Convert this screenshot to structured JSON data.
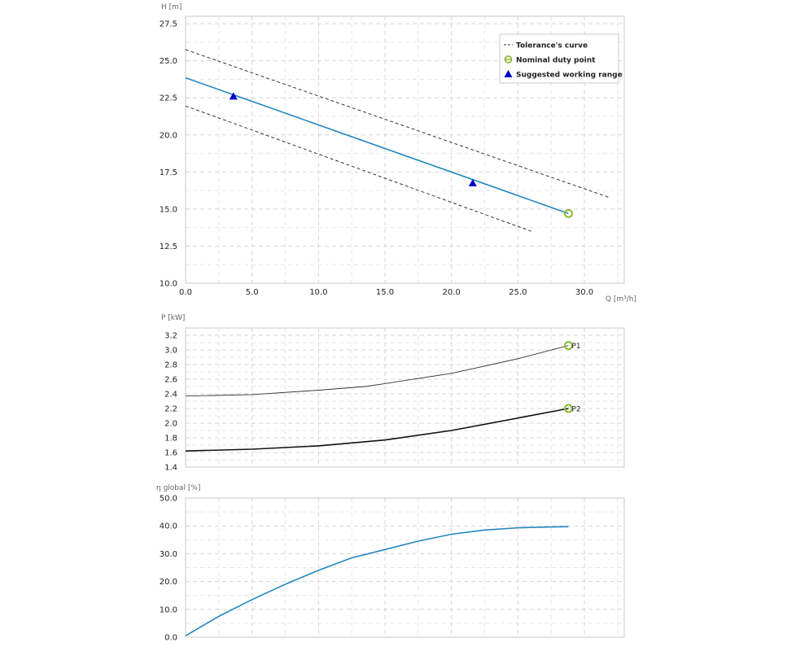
{
  "chart_data": [
    {
      "type": "line",
      "ylabel": "H [m]",
      "xlabel": "Q [m³/h]",
      "xlim": [
        0,
        33
      ],
      "ylim": [
        10,
        28
      ],
      "xticks": [
        "0.0",
        "5.0",
        "10.0",
        "15.0",
        "20.0",
        "25.0",
        "30.0"
      ],
      "yticks": [
        "10.0",
        "12.5",
        "15.0",
        "17.5",
        "20.0",
        "22.5",
        "25.0",
        "27.5"
      ],
      "grid": true,
      "legend": {
        "position": "top-right",
        "entries": [
          "Tolerance's curve",
          "Nominal duty point",
          "Suggested working range"
        ]
      },
      "series": [
        {
          "name": "Tolerance's curve",
          "style": "dashed",
          "color": "#333333",
          "x": [
            0,
            31.8
          ],
          "y": [
            25.75,
            15.8
          ]
        },
        {
          "name": "Tolerance's curve",
          "style": "dashed",
          "color": "#333333",
          "x": [
            0,
            26
          ],
          "y": [
            21.95,
            13.5
          ]
        },
        {
          "name": "",
          "style": "solid",
          "color": "#2386c0",
          "x": [
            0,
            28.8
          ],
          "y": [
            23.85,
            14.7
          ]
        }
      ],
      "nominal_duty_point": {
        "x": 28.8,
        "y": 14.7,
        "color": "#8db832"
      },
      "suggested_working_range": [
        {
          "x": 3.6,
          "y": 22.6
        },
        {
          "x": 21.6,
          "y": 16.75
        }
      ],
      "marker_color": "#0000cc"
    },
    {
      "type": "line",
      "ylabel": "P [kW]",
      "xlim": [
        0,
        33
      ],
      "ylim": [
        1.4,
        3.3
      ],
      "yticks": [
        "1.4",
        "1.6",
        "1.8",
        "2.0",
        "2.2",
        "2.4",
        "2.6",
        "2.8",
        "3.0",
        "3.2"
      ],
      "grid": true,
      "series": [
        {
          "name": "P1",
          "color": "#333333",
          "x": [
            0,
            5,
            10,
            13.5,
            15,
            20,
            25,
            28.8
          ],
          "y": [
            2.37,
            2.39,
            2.45,
            2.5,
            2.54,
            2.68,
            2.88,
            3.06
          ]
        },
        {
          "name": "P2",
          "color": "#111111",
          "x": [
            0,
            5,
            10,
            15,
            20,
            25,
            28.8
          ],
          "y": [
            1.62,
            1.645,
            1.69,
            1.77,
            1.9,
            2.07,
            2.2
          ]
        }
      ],
      "point_labels": [
        "P1",
        "P2"
      ],
      "marker_color": "#8db832"
    },
    {
      "type": "line",
      "ylabel": "η global [%]",
      "xlim": [
        0,
        33
      ],
      "ylim": [
        0,
        50
      ],
      "yticks": [
        "0.0",
        "10.0",
        "20.0",
        "30.0",
        "40.0",
        "50.0"
      ],
      "grid": true,
      "series": [
        {
          "name": "",
          "color": "#2386c0",
          "x": [
            0,
            2.5,
            5,
            7.5,
            10,
            12.5,
            15,
            17.5,
            20,
            22.5,
            25,
            27.5,
            28.8
          ],
          "y": [
            0.5,
            7.5,
            13.5,
            19.0,
            24.0,
            28.5,
            31.5,
            34.5,
            37.0,
            38.5,
            39.3,
            39.6,
            39.7
          ]
        }
      ]
    }
  ]
}
